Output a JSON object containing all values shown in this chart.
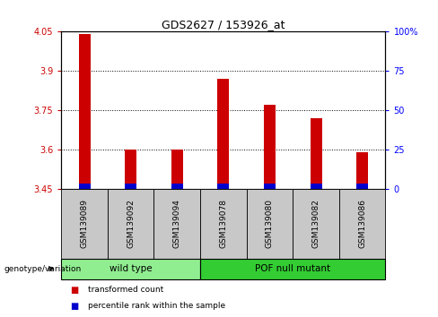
{
  "title": "GDS2627 / 153926_at",
  "samples": [
    "GSM139089",
    "GSM139092",
    "GSM139094",
    "GSM139078",
    "GSM139080",
    "GSM139082",
    "GSM139086"
  ],
  "transformed_counts": [
    4.04,
    3.6,
    3.6,
    3.87,
    3.77,
    3.72,
    3.59
  ],
  "percentile_ranks_pct": [
    3.0,
    3.0,
    3.0,
    3.0,
    3.0,
    3.0,
    3.0
  ],
  "base_value": 3.45,
  "ylim_left": [
    3.45,
    4.05
  ],
  "ylim_right": [
    0,
    100
  ],
  "yticks_left": [
    3.45,
    3.6,
    3.75,
    3.9,
    4.05
  ],
  "yticks_right": [
    0,
    25,
    50,
    75,
    100
  ],
  "ytick_labels_left": [
    "3.45",
    "3.6",
    "3.75",
    "3.9",
    "4.05"
  ],
  "ytick_labels_right": [
    "0",
    "25",
    "50",
    "75",
    "100%"
  ],
  "hlines": [
    3.6,
    3.75,
    3.9
  ],
  "groups": [
    {
      "label": "wild type",
      "indices": [
        0,
        1,
        2
      ],
      "color": "#90EE90"
    },
    {
      "label": "POF null mutant",
      "indices": [
        3,
        4,
        5,
        6
      ],
      "color": "#33CC33"
    }
  ],
  "group_row_label": "genotype/variation",
  "red_color": "#CC0000",
  "blue_color": "#0000CC",
  "bar_width": 0.25,
  "tick_area_bg": "#C8C8C8",
  "legend_items": [
    {
      "color": "#CC0000",
      "label": "transformed count"
    },
    {
      "color": "#0000CC",
      "label": "percentile rank within the sample"
    }
  ]
}
